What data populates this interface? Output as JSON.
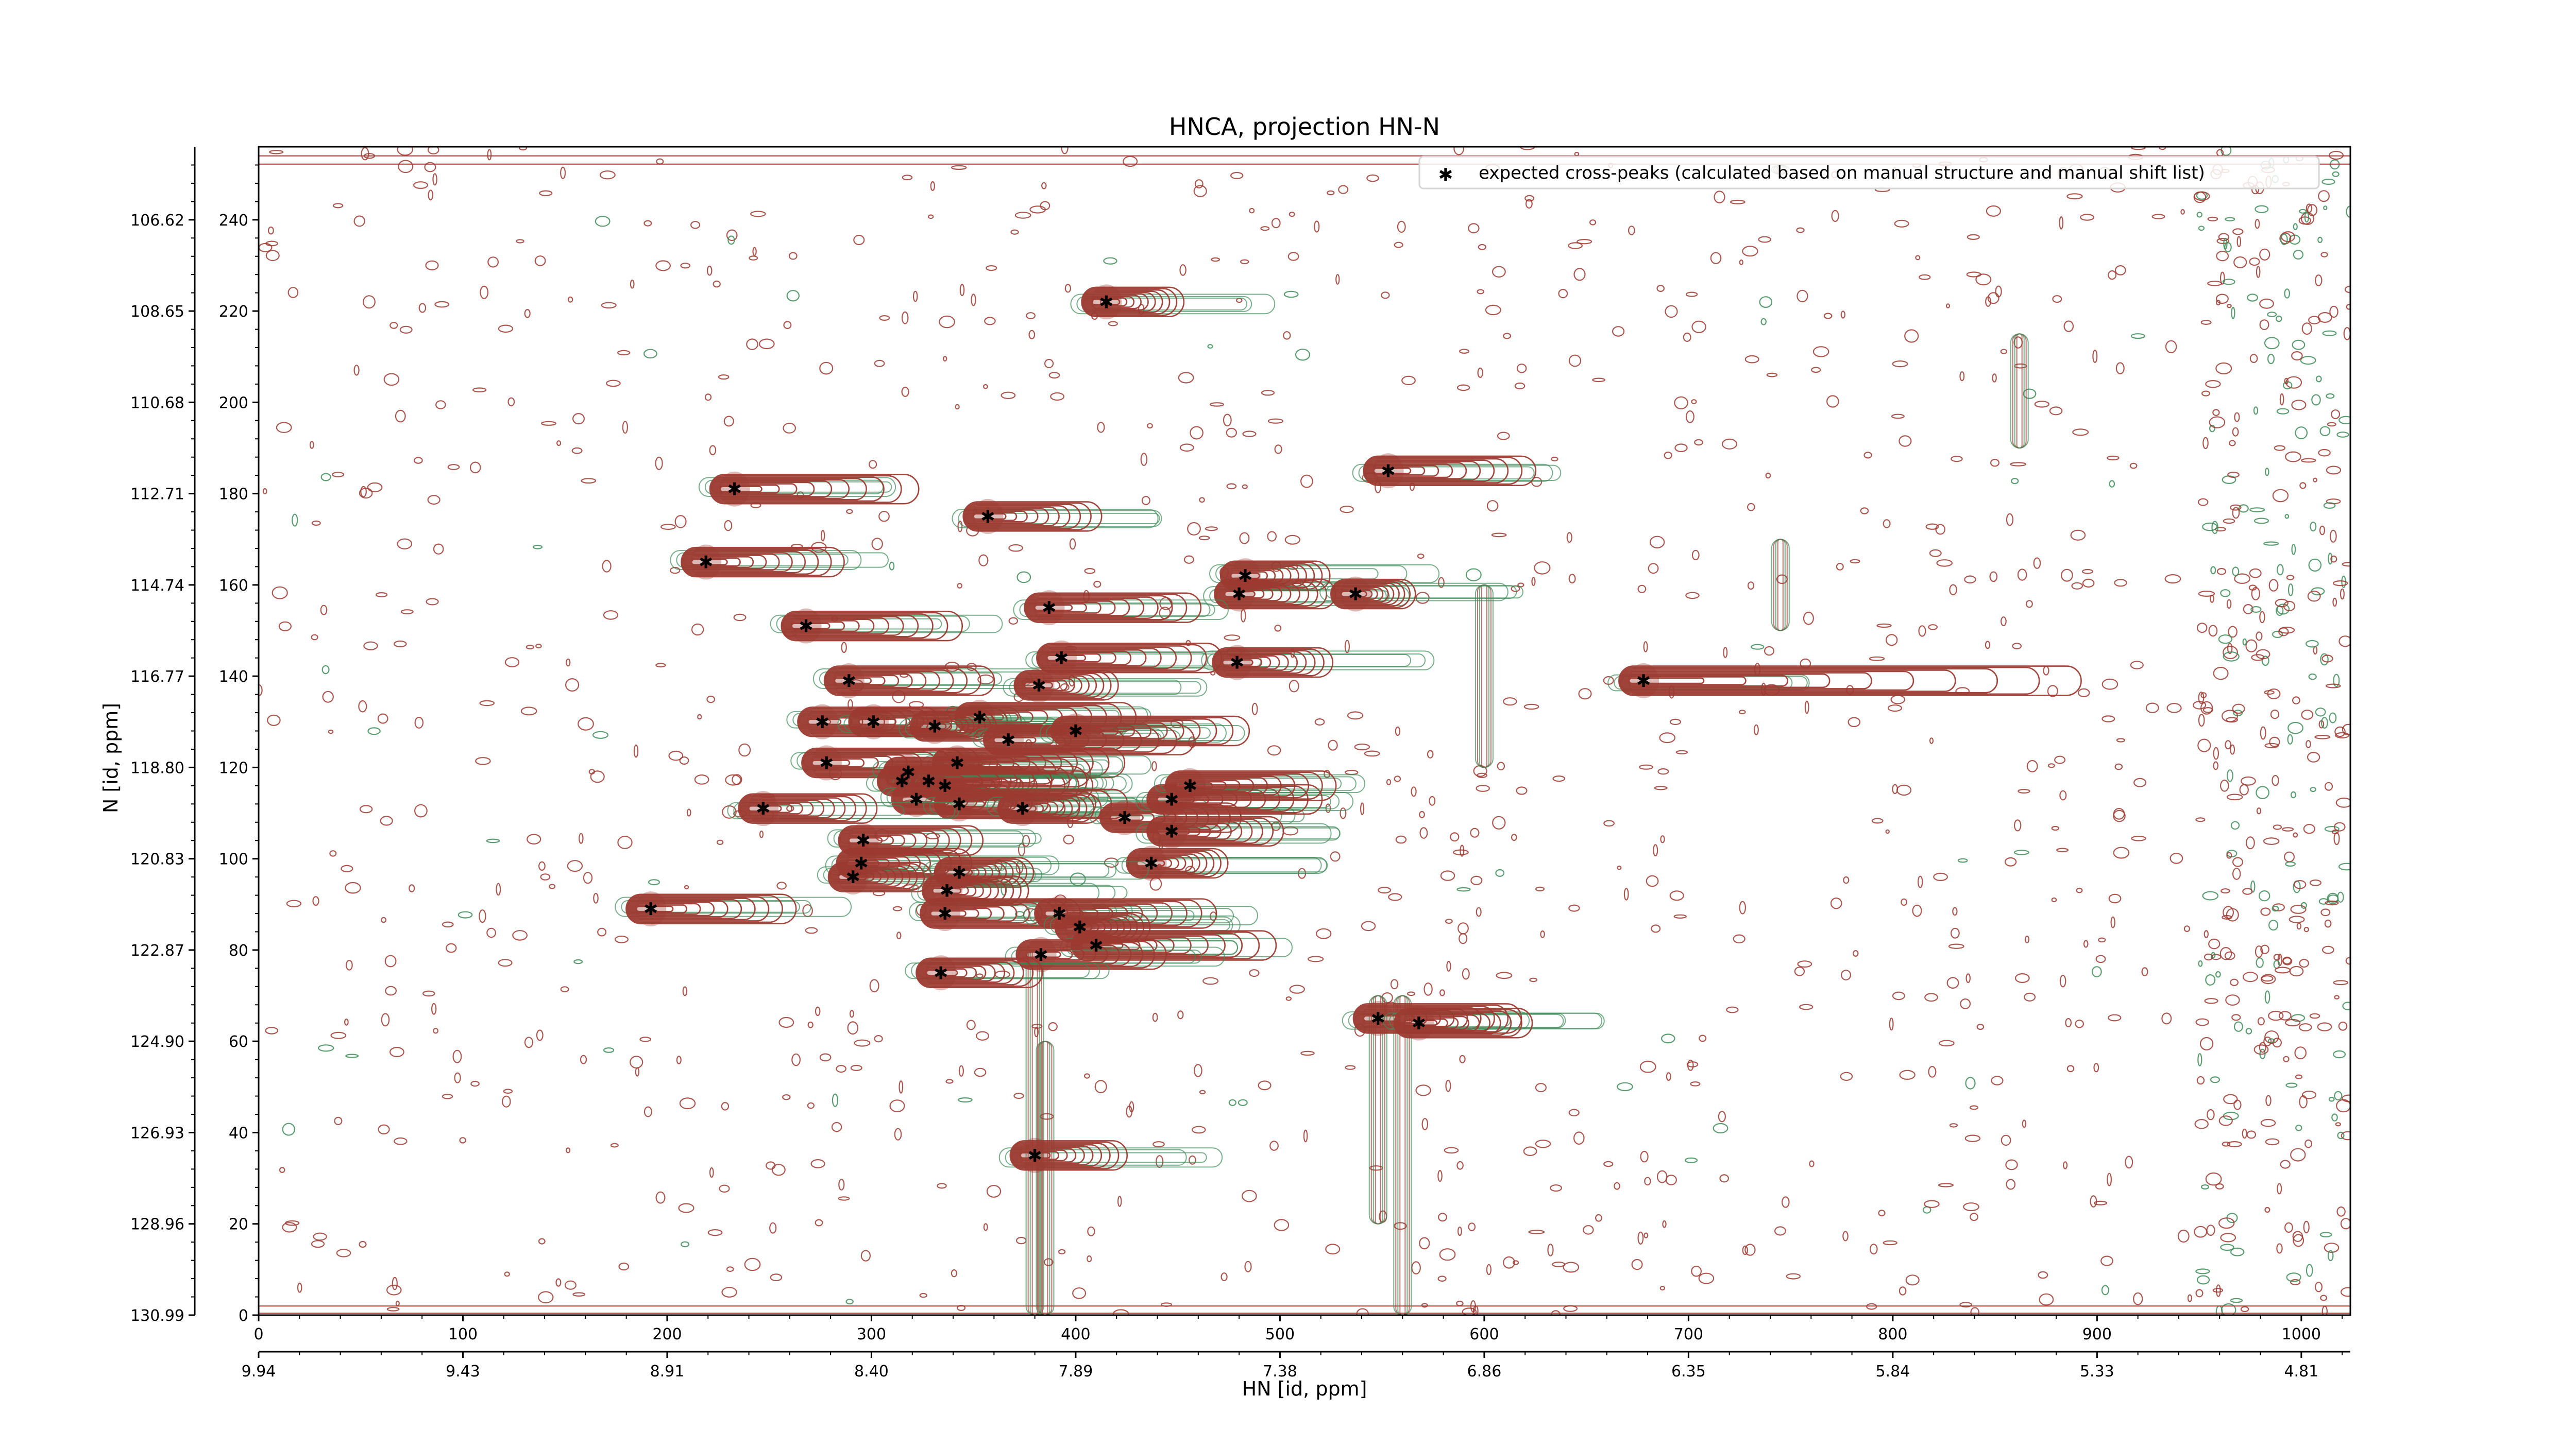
{
  "chart_data": {
    "type": "scatter",
    "title": "HNCA, projection HN-N",
    "xlabel": "HN [id, ppm]",
    "ylabel": "N [id, ppm]",
    "xlim": [
      0,
      1024
    ],
    "ylim": [
      0,
      256
    ],
    "x_ticks": [
      0,
      100,
      200,
      300,
      400,
      500,
      600,
      700,
      800,
      900,
      1000
    ],
    "y_ticks": [
      0,
      20,
      40,
      60,
      80,
      100,
      120,
      140,
      160,
      180,
      200,
      220,
      240
    ],
    "secondary_x_ticks": [
      "9.94",
      "9.43",
      "8.91",
      "8.40",
      "7.89",
      "7.38",
      "6.86",
      "6.35",
      "5.84",
      "5.33",
      "4.81"
    ],
    "secondary_y_ticks": [
      "130.99",
      "128.96",
      "126.93",
      "124.90",
      "122.87",
      "120.83",
      "118.80",
      "116.77",
      "114.74",
      "112.71",
      "110.68",
      "108.65",
      "106.62"
    ],
    "legend": {
      "label": "expected cross-peaks (calculated based on manual structure and manual shift list)",
      "position": "top-right"
    },
    "colors": {
      "positive_contour": "#9c3a30",
      "negative_contour": "#3d8c58",
      "marker": "#0a14d8"
    },
    "series": [
      {
        "name": "expected cross-peaks (calculated based on manual structure and manual shift list)",
        "points": [
          {
            "x": 415,
            "y": 222
          },
          {
            "x": 233,
            "y": 181
          },
          {
            "x": 357,
            "y": 175
          },
          {
            "x": 219,
            "y": 165
          },
          {
            "x": 553,
            "y": 185
          },
          {
            "x": 483,
            "y": 162
          },
          {
            "x": 480,
            "y": 158
          },
          {
            "x": 537,
            "y": 158
          },
          {
            "x": 387,
            "y": 155
          },
          {
            "x": 268,
            "y": 151
          },
          {
            "x": 393,
            "y": 144
          },
          {
            "x": 479,
            "y": 143
          },
          {
            "x": 678,
            "y": 139
          },
          {
            "x": 289,
            "y": 139
          },
          {
            "x": 382,
            "y": 138
          },
          {
            "x": 276,
            "y": 130
          },
          {
            "x": 301,
            "y": 130
          },
          {
            "x": 353,
            "y": 131
          },
          {
            "x": 331,
            "y": 129
          },
          {
            "x": 367,
            "y": 126
          },
          {
            "x": 400,
            "y": 128
          },
          {
            "x": 278,
            "y": 121
          },
          {
            "x": 342,
            "y": 121
          },
          {
            "x": 318,
            "y": 119
          },
          {
            "x": 328,
            "y": 117
          },
          {
            "x": 336,
            "y": 116
          },
          {
            "x": 315,
            "y": 117
          },
          {
            "x": 322,
            "y": 113
          },
          {
            "x": 343,
            "y": 112
          },
          {
            "x": 374,
            "y": 111
          },
          {
            "x": 247,
            "y": 111
          },
          {
            "x": 424,
            "y": 109
          },
          {
            "x": 447,
            "y": 113
          },
          {
            "x": 456,
            "y": 116
          },
          {
            "x": 447,
            "y": 106
          },
          {
            "x": 296,
            "y": 104
          },
          {
            "x": 295,
            "y": 99
          },
          {
            "x": 291,
            "y": 96
          },
          {
            "x": 437,
            "y": 99
          },
          {
            "x": 343,
            "y": 97
          },
          {
            "x": 337,
            "y": 93
          },
          {
            "x": 336,
            "y": 88
          },
          {
            "x": 392,
            "y": 88
          },
          {
            "x": 402,
            "y": 85
          },
          {
            "x": 410,
            "y": 81
          },
          {
            "x": 192,
            "y": 89
          },
          {
            "x": 383,
            "y": 79
          },
          {
            "x": 334,
            "y": 75
          },
          {
            "x": 548,
            "y": 65
          },
          {
            "x": 568,
            "y": 64
          },
          {
            "x": 380,
            "y": 35
          }
        ]
      }
    ],
    "grid": false
  }
}
